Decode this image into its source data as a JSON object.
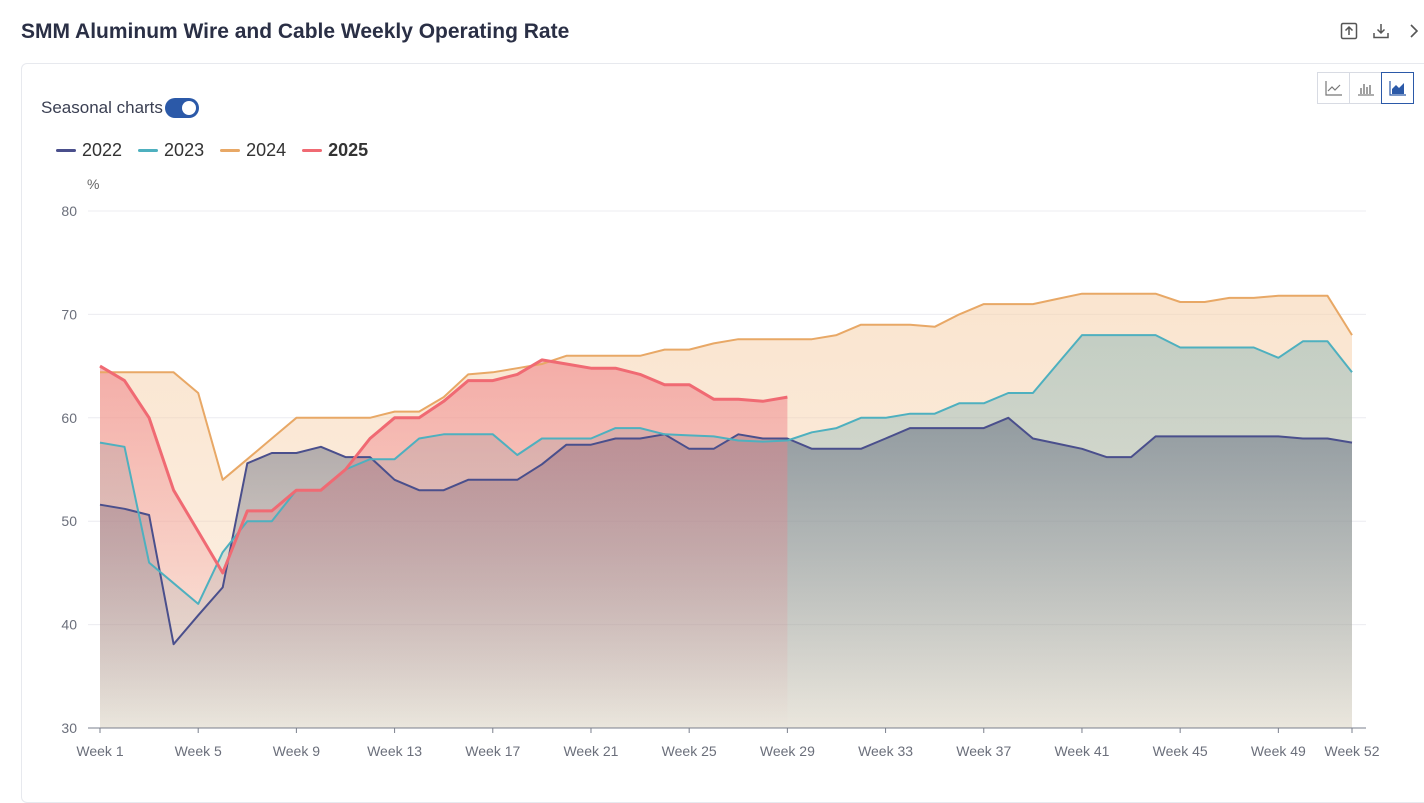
{
  "header": {
    "title": "SMM Aluminum Wire and Cable Weekly Operating Rate"
  },
  "toolbar": {
    "toggle_label": "Seasonal charts",
    "toggle_on": true
  },
  "chart_data": {
    "type": "area",
    "title": "SMM Aluminum Wire and Cable Weekly Operating Rate",
    "ylabel": "%",
    "ylim": [
      30,
      80
    ],
    "yticks": [
      30,
      40,
      50,
      60,
      70,
      80
    ],
    "xtick_labels": [
      "Week 1",
      "Week 5",
      "Week 9",
      "Week 13",
      "Week 17",
      "Week 21",
      "Week 25",
      "Week 29",
      "Week 33",
      "Week 37",
      "Week 41",
      "Week 45",
      "Week 49",
      "Week 52"
    ],
    "legend_position": "top-left",
    "grid": true,
    "series": [
      {
        "name": "2022",
        "color": "#4a4f8c",
        "values": [
          51.6,
          51.2,
          50.6,
          38.1,
          40.9,
          43.6,
          55.6,
          56.6,
          56.6,
          57.2,
          56.2,
          56.2,
          54.0,
          53.0,
          53.0,
          54.0,
          54.0,
          54.0,
          55.5,
          57.4,
          57.4,
          58.0,
          58.0,
          58.4,
          57.0,
          57.0,
          58.4,
          58.0,
          58.0,
          57.0,
          57.0,
          57.0,
          58.0,
          59.0,
          59.0,
          59.0,
          59.0,
          60.0,
          58.0,
          57.5,
          57.0,
          56.2,
          56.2,
          58.2,
          58.2,
          58.2,
          58.2,
          58.2,
          58.2,
          58.0,
          58.0,
          57.6
        ]
      },
      {
        "name": "2023",
        "color": "#4eb0bf",
        "values": [
          57.6,
          57.2,
          46.0,
          44.0,
          42.0,
          47.0,
          50.0,
          50.0,
          53.0,
          53.0,
          55.0,
          56.0,
          56.0,
          58.0,
          58.4,
          58.4,
          58.4,
          56.4,
          58.0,
          58.0,
          58.0,
          59.0,
          59.0,
          58.4,
          58.3,
          58.2,
          57.8,
          57.7,
          57.8,
          58.6,
          59.0,
          60.0,
          60.0,
          60.4,
          60.4,
          61.4,
          61.4,
          62.4,
          62.4,
          65.2,
          68.0,
          68.0,
          68.0,
          68.0,
          66.8,
          66.8,
          66.8,
          66.8,
          65.8,
          67.4,
          67.4,
          64.4
        ]
      },
      {
        "name": "2024",
        "color": "#e8a866",
        "values": [
          64.4,
          64.4,
          64.4,
          64.4,
          62.4,
          54.0,
          56.0,
          58.0,
          60.0,
          60.0,
          60.0,
          60.0,
          60.6,
          60.6,
          62.0,
          64.2,
          64.4,
          64.8,
          65.2,
          66.0,
          66.0,
          66.0,
          66.0,
          66.6,
          66.6,
          67.2,
          67.6,
          67.6,
          67.6,
          67.6,
          68.0,
          69.0,
          69.0,
          69.0,
          68.8,
          70.0,
          71.0,
          71.0,
          71.0,
          71.5,
          72.0,
          72.0,
          72.0,
          72.0,
          71.2,
          71.2,
          71.6,
          71.6,
          71.8,
          71.8,
          71.8,
          68.0
        ]
      },
      {
        "name": "2025",
        "color": "#f06a73",
        "values": [
          65.0,
          63.6,
          60.0,
          53.0,
          49.0,
          45.0,
          51.0,
          51.0,
          53.0,
          53.0,
          55.0,
          58.0,
          60.0,
          60.0,
          61.6,
          63.6,
          63.6,
          64.2,
          65.6,
          65.2,
          64.8,
          64.8,
          64.2,
          63.2,
          63.2,
          61.8,
          61.8,
          61.6,
          62.0
        ]
      }
    ]
  }
}
